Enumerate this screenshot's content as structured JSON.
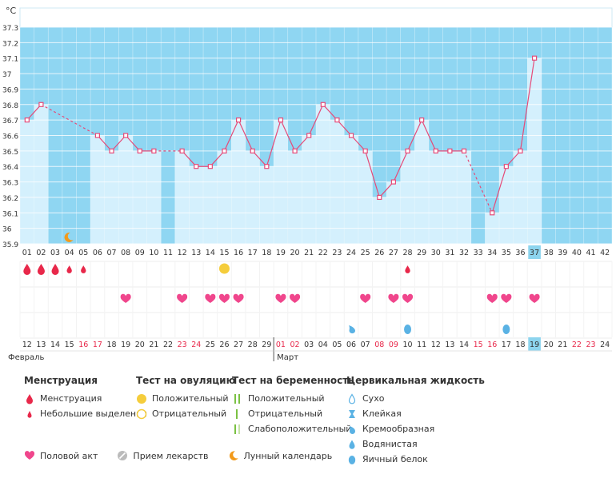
{
  "chart_data": {
    "type": "line",
    "unit_label": "°C",
    "ylim": [
      35.9,
      37.3
    ],
    "y_ticks": [
      "35.9",
      "36",
      "36.1",
      "36.2",
      "36.3",
      "36.4",
      "36.5",
      "36.6",
      "36.7",
      "36.8",
      "36.9",
      "37",
      "37.1",
      "37.2",
      "37.3"
    ],
    "cycle_days": [
      "01",
      "02",
      "03",
      "04",
      "05",
      "06",
      "07",
      "08",
      "09",
      "10",
      "11",
      "12",
      "13",
      "14",
      "15",
      "16",
      "17",
      "18",
      "19",
      "20",
      "21",
      "22",
      "23",
      "24",
      "25",
      "26",
      "27",
      "28",
      "29",
      "30",
      "31",
      "32",
      "33",
      "34",
      "35",
      "36",
      "37",
      "38",
      "39",
      "40",
      "41",
      "42"
    ],
    "current_day": "37",
    "temperatures": [
      36.7,
      36.8,
      null,
      null,
      null,
      36.6,
      36.5,
      36.6,
      36.5,
      36.5,
      null,
      36.5,
      36.4,
      36.4,
      36.5,
      36.7,
      36.5,
      36.4,
      36.7,
      36.5,
      36.6,
      36.8,
      36.7,
      36.6,
      36.5,
      36.2,
      36.3,
      36.5,
      36.7,
      36.5,
      36.5,
      36.5,
      null,
      36.1,
      36.4,
      36.5,
      37.1,
      null,
      null,
      null,
      null,
      null
    ],
    "dates": [
      "12",
      "13",
      "14",
      "15",
      "16",
      "17",
      "18",
      "19",
      "20",
      "21",
      "22",
      "23",
      "24",
      "25",
      "26",
      "27",
      "28",
      "29",
      "01",
      "02",
      "03",
      "04",
      "05",
      "06",
      "07",
      "08",
      "09",
      "10",
      "11",
      "12",
      "13",
      "14",
      "15",
      "16",
      "17",
      "18",
      "19",
      "20",
      "21",
      "22",
      "23",
      "24"
    ],
    "weekend_days": [
      4,
      5,
      11,
      12,
      18,
      19,
      25,
      26,
      32,
      33,
      39,
      40
    ],
    "current_date": "19",
    "months": [
      {
        "label": "Февраль",
        "start_index": 0
      },
      {
        "label": "Март",
        "start_index": 18
      }
    ],
    "menstruation": [
      {
        "day": 1,
        "level": "full"
      },
      {
        "day": 2,
        "level": "full"
      },
      {
        "day": 3,
        "level": "full"
      },
      {
        "day": 4,
        "level": "light"
      },
      {
        "day": 5,
        "level": "light"
      },
      {
        "day": 28,
        "level": "light"
      }
    ],
    "ovulation_test": [
      {
        "day": 15,
        "result": "positive"
      }
    ],
    "intercourse_days": [
      8,
      12,
      14,
      15,
      16,
      19,
      20,
      25,
      27,
      28,
      34,
      35,
      37
    ],
    "cervical_fluid": [
      {
        "day": 24,
        "type": "creamy"
      },
      {
        "day": 28,
        "type": "egg_white"
      },
      {
        "day": 35,
        "type": "egg_white"
      }
    ],
    "moon_day": 4
  },
  "legend": {
    "menstruation": {
      "title": "Менструация",
      "items": [
        "Менструация",
        "Небольшие выделения"
      ]
    },
    "ovulation": {
      "title": "Тест на овуляцию",
      "items": [
        "Положительный",
        "Отрицательный"
      ]
    },
    "pregnancy": {
      "title": "Тест на беременность",
      "items": [
        "Положительный",
        "Отрицательный",
        "Слабоположительный"
      ]
    },
    "cervical": {
      "title": "Цервикальная жидкость",
      "items": [
        "Сухо",
        "Клейкая",
        "Кремообразная",
        "Водянистая",
        "Яичный белок"
      ]
    },
    "bottom": [
      "Половой акт",
      "Прием лекарств",
      "Лунный календарь"
    ]
  },
  "colors": {
    "band": "#8fd6f2",
    "bar": "#d4f0fd",
    "bar_edge": "#c3e8f8",
    "line": "#e64a78",
    "grid": "#ffffff",
    "axis_text": "#333333",
    "weekend": "#e8284a",
    "drop": "#e8284a",
    "heart": "#f0468c",
    "fluid": "#5ab2e4",
    "ovu": "#f5cd3c",
    "green": "#7ac142",
    "moon": "#f29a1b",
    "highlight": "#8cd4ee"
  }
}
